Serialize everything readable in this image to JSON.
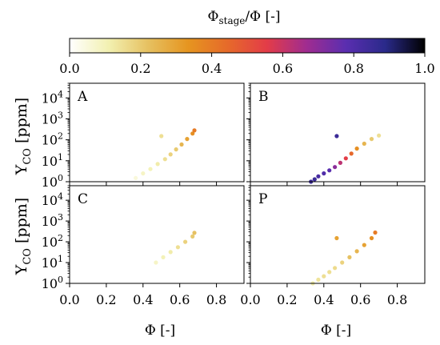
{
  "colorbar": {
    "title_main": "Φ",
    "title_sub": "stage",
    "title_tail": "/Φ [-]",
    "ticks": [
      "0.0",
      "0.2",
      "0.4",
      "0.6",
      "0.8",
      "1.0"
    ],
    "range": [
      0,
      1
    ],
    "colormap": "CMRmap_r",
    "stops": [
      "#ffffff",
      "#f2f0b0",
      "#e6c060",
      "#e69520",
      "#e66a2a",
      "#e33c48",
      "#a02c90",
      "#5a2eb0",
      "#2a2a8a",
      "#000000"
    ]
  },
  "y_axis_label": "Y",
  "y_axis_label_sub": "CO",
  "y_axis_label_tail": " [ppm]",
  "x_axis_label": "Φ [-]",
  "x_tick_labels": [
    "0.0",
    "0.2",
    "0.4",
    "0.6",
    "0.8"
  ],
  "y_tick_labels": [
    {
      "base": "10",
      "exp": "0"
    },
    {
      "base": "10",
      "exp": "1"
    },
    {
      "base": "10",
      "exp": "2"
    },
    {
      "base": "10",
      "exp": "3"
    },
    {
      "base": "10",
      "exp": "4"
    }
  ],
  "chart_data": [
    {
      "type": "scatter",
      "panel_label": "A",
      "xlabel": "",
      "ylabel": "Y_CO [ppm]",
      "xlim": [
        0,
        0.95
      ],
      "ylim": [
        1,
        50000
      ],
      "yscale": "log",
      "color_value": "Φ_stage/Φ",
      "points": [
        {
          "x": 0.36,
          "y": 1.5,
          "c": 0.05
        },
        {
          "x": 0.4,
          "y": 2.5,
          "c": 0.08
        },
        {
          "x": 0.44,
          "y": 4,
          "c": 0.1
        },
        {
          "x": 0.48,
          "y": 7,
          "c": 0.12
        },
        {
          "x": 0.52,
          "y": 12,
          "c": 0.15
        },
        {
          "x": 0.55,
          "y": 20,
          "c": 0.18
        },
        {
          "x": 0.58,
          "y": 35,
          "c": 0.2
        },
        {
          "x": 0.61,
          "y": 60,
          "c": 0.25
        },
        {
          "x": 0.64,
          "y": 110,
          "c": 0.3
        },
        {
          "x": 0.67,
          "y": 200,
          "c": 0.35
        },
        {
          "x": 0.68,
          "y": 280,
          "c": 0.4
        },
        {
          "x": 0.5,
          "y": 150,
          "c": 0.15
        }
      ]
    },
    {
      "type": "scatter",
      "panel_label": "B",
      "xlabel": "",
      "ylabel": "",
      "xlim": [
        0,
        0.95
      ],
      "ylim": [
        1,
        50000
      ],
      "yscale": "log",
      "color_value": "Φ_stage/Φ",
      "points": [
        {
          "x": 0.33,
          "y": 1.0,
          "c": 0.85
        },
        {
          "x": 0.35,
          "y": 1.3,
          "c": 0.85
        },
        {
          "x": 0.37,
          "y": 1.8,
          "c": 0.82
        },
        {
          "x": 0.4,
          "y": 2.5,
          "c": 0.8
        },
        {
          "x": 0.43,
          "y": 3.5,
          "c": 0.78
        },
        {
          "x": 0.46,
          "y": 5,
          "c": 0.7
        },
        {
          "x": 0.49,
          "y": 8,
          "c": 0.62
        },
        {
          "x": 0.52,
          "y": 13,
          "c": 0.55
        },
        {
          "x": 0.55,
          "y": 22,
          "c": 0.45
        },
        {
          "x": 0.58,
          "y": 38,
          "c": 0.35
        },
        {
          "x": 0.62,
          "y": 65,
          "c": 0.25
        },
        {
          "x": 0.66,
          "y": 110,
          "c": 0.2
        },
        {
          "x": 0.7,
          "y": 160,
          "c": 0.15
        },
        {
          "x": 0.47,
          "y": 150,
          "c": 0.85
        }
      ]
    },
    {
      "type": "scatter",
      "panel_label": "C",
      "xlabel": "Φ [-]",
      "ylabel": "Y_CO [ppm]",
      "xlim": [
        0,
        0.95
      ],
      "ylim": [
        1,
        50000
      ],
      "yscale": "log",
      "color_value": "Φ_stage/Φ",
      "points": [
        {
          "x": 0.47,
          "y": 10,
          "c": 0.08
        },
        {
          "x": 0.51,
          "y": 18,
          "c": 0.1
        },
        {
          "x": 0.55,
          "y": 32,
          "c": 0.12
        },
        {
          "x": 0.59,
          "y": 55,
          "c": 0.15
        },
        {
          "x": 0.63,
          "y": 100,
          "c": 0.18
        },
        {
          "x": 0.67,
          "y": 180,
          "c": 0.2
        },
        {
          "x": 0.68,
          "y": 270,
          "c": 0.22
        }
      ]
    },
    {
      "type": "scatter",
      "panel_label": "P",
      "xlabel": "Φ [-]",
      "ylabel": "",
      "xlim": [
        0,
        0.95
      ],
      "ylim": [
        1,
        50000
      ],
      "yscale": "log",
      "color_value": "Φ_stage/Φ",
      "points": [
        {
          "x": 0.34,
          "y": 1.0,
          "c": 0.12
        },
        {
          "x": 0.37,
          "y": 1.5,
          "c": 0.14
        },
        {
          "x": 0.4,
          "y": 2.2,
          "c": 0.15
        },
        {
          "x": 0.43,
          "y": 3.5,
          "c": 0.15
        },
        {
          "x": 0.46,
          "y": 5.5,
          "c": 0.16
        },
        {
          "x": 0.5,
          "y": 10,
          "c": 0.18
        },
        {
          "x": 0.54,
          "y": 18,
          "c": 0.22
        },
        {
          "x": 0.58,
          "y": 35,
          "c": 0.25
        },
        {
          "x": 0.62,
          "y": 70,
          "c": 0.3
        },
        {
          "x": 0.66,
          "y": 150,
          "c": 0.35
        },
        {
          "x": 0.68,
          "y": 280,
          "c": 0.4
        },
        {
          "x": 0.47,
          "y": 150,
          "c": 0.3
        }
      ]
    }
  ]
}
